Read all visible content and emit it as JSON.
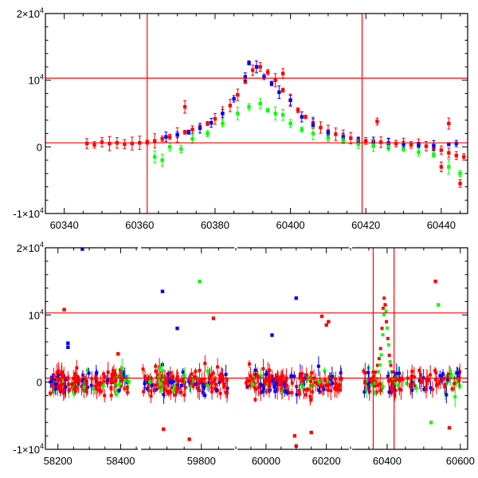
{
  "chart_data": [
    {
      "type": "scatter",
      "title": "",
      "xlabel": "",
      "ylabel": "",
      "xlim": [
        60335,
        60447
      ],
      "ylim": [
        -10000,
        20000
      ],
      "xticks": [
        60340,
        60360,
        60380,
        60400,
        60420,
        60440
      ],
      "xtick_labels": [
        "60340",
        "60360",
        "60380",
        "60400",
        "60420",
        "60440"
      ],
      "yticks": [
        -10000,
        0,
        10000,
        20000
      ],
      "ytick_labels": [
        {
          "base": "-1×10",
          "exp": "4"
        },
        {
          "base": "0",
          "exp": ""
        },
        {
          "base": "10",
          "exp": "4"
        },
        {
          "base": "2×10",
          "exp": "4"
        }
      ],
      "reference_lines": {
        "vertical": [
          60362,
          60419
        ],
        "horizontal": [
          10300,
          600
        ]
      },
      "series": [
        {
          "color": "#ff0000",
          "marker": "square",
          "x": [
            60346,
            60348,
            60350,
            60352,
            60354,
            60356,
            60358,
            60360,
            60362,
            60364,
            60366,
            60368,
            60370,
            60372,
            60374,
            60376,
            60378,
            60380,
            60382,
            60384,
            60386,
            60388,
            60390,
            60392,
            60394,
            60396,
            60398,
            60400,
            60402,
            60404,
            60406,
            60408,
            60410,
            60412,
            60414,
            60416,
            60418,
            60420,
            60422,
            60424,
            60426,
            60428,
            60430,
            60432,
            60434,
            60436,
            60438,
            60440,
            60442,
            60444,
            60446,
            60372,
            60398,
            60423,
            60442,
            60440,
            60445
          ],
          "y": [
            500,
            300,
            700,
            500,
            600,
            400,
            500,
            600,
            700,
            900,
            1200,
            1500,
            1800,
            2200,
            2600,
            3000,
            3500,
            4200,
            5000,
            6200,
            7800,
            9800,
            11500,
            12000,
            11200,
            10000,
            8500,
            7000,
            5500,
            4500,
            3600,
            2900,
            2300,
            1900,
            1600,
            1300,
            1100,
            900,
            800,
            700,
            600,
            500,
            400,
            300,
            200,
            100,
            -200,
            -500,
            -900,
            -1300,
            -1500,
            6000,
            11000,
            3800,
            3500,
            -3000,
            -5500
          ]
        },
        {
          "color": "#0000ff",
          "marker": "square",
          "x": [
            60367,
            60370,
            60373,
            60376,
            60379,
            60382,
            60385,
            60388,
            60389,
            60391,
            60393,
            60395,
            60397,
            60400,
            60403,
            60406,
            60410,
            60414,
            60418,
            60422,
            60426,
            60430,
            60434,
            60438,
            60442,
            60444
          ],
          "y": [
            1500,
            1800,
            2200,
            2800,
            3600,
            5000,
            7200,
            10500,
            12600,
            12000,
            10500,
            9500,
            8200,
            7000,
            4500,
            3200,
            2100,
            1400,
            900,
            700,
            500,
            400,
            300,
            200,
            400,
            500
          ]
        },
        {
          "color": "#00ff00",
          "marker": "square",
          "x": [
            60364,
            60366,
            60368,
            60371,
            60374,
            60378,
            60382,
            60386,
            60389,
            60392,
            60394,
            60396,
            60398,
            60400,
            60403,
            60406,
            60410,
            60414,
            60418,
            60422,
            60426,
            60430,
            60434,
            60438,
            60442,
            60445
          ],
          "y": [
            -1500,
            -2000,
            0,
            -300,
            1200,
            2000,
            3500,
            5000,
            6000,
            6500,
            5500,
            5000,
            4800,
            3500,
            2600,
            2000,
            1300,
            900,
            400,
            200,
            0,
            -400,
            -800,
            -1200,
            -3000,
            -4000
          ]
        }
      ]
    },
    {
      "type": "scatter",
      "title": "",
      "xlabel": "",
      "ylabel": "",
      "x_segments": [
        {
          "xlim": [
            58160,
            58460
          ],
          "xticks": [
            58200,
            58400
          ]
        },
        {
          "xlim": [
            59620,
            59900
          ],
          "xticks": [
            59800
          ]
        },
        {
          "xlim": [
            59900,
            60280
          ],
          "xticks": [
            60000,
            60200
          ]
        },
        {
          "xlim": [
            60300,
            60620
          ],
          "xticks": [
            60400,
            60600
          ]
        }
      ],
      "xtick_labels": [
        "58200",
        "58400",
        "59800",
        "60000",
        "60200",
        "60400",
        "60600"
      ],
      "ylim": [
        -10000,
        20000
      ],
      "yticks": [
        -10000,
        0,
        10000,
        20000
      ],
      "ytick_labels": [
        {
          "base": "-1×10",
          "exp": "4"
        },
        {
          "base": "0",
          "exp": ""
        },
        {
          "base": "10",
          "exp": "4"
        },
        {
          "base": "2×10",
          "exp": "4"
        }
      ],
      "reference_lines": {
        "vertical": [
          60362,
          60419
        ],
        "horizontal": [
          10300,
          600
        ]
      },
      "observing_seasons": [
        [
          58175,
          58430
        ],
        [
          59630,
          59880
        ],
        [
          59930,
          60250
        ],
        [
          60335,
          60600
        ]
      ],
      "outliers": [
        {
          "color": "#0000ff",
          "x": 58278,
          "y": 19800
        },
        {
          "color": "#ff0000",
          "x": 58220,
          "y": 10800
        },
        {
          "color": "#0000ff",
          "x": 58232,
          "y": 5800
        },
        {
          "color": "#0000ff",
          "x": 58232,
          "y": 5200
        },
        {
          "color": "#ff0000",
          "x": 58392,
          "y": 4200
        },
        {
          "color": "#0000ff",
          "x": 59687,
          "y": 13500
        },
        {
          "color": "#00ff00",
          "x": 59795,
          "y": 15000
        },
        {
          "color": "#0000ff",
          "x": 59730,
          "y": 8000
        },
        {
          "color": "#ff0000",
          "x": 59835,
          "y": 9500
        },
        {
          "color": "#0000ff",
          "x": 60100,
          "y": 12500
        },
        {
          "color": "#ff0000",
          "x": 60185,
          "y": 9800
        },
        {
          "color": "#ff0000",
          "x": 60200,
          "y": 8500
        },
        {
          "color": "#ff0000",
          "x": 60207,
          "y": 9000
        },
        {
          "color": "#0000ff",
          "x": 60020,
          "y": 7000
        },
        {
          "color": "#ff0000",
          "x": 60532,
          "y": 15000
        },
        {
          "color": "#00ff00",
          "x": 60540,
          "y": 11500
        },
        {
          "color": "#ff0000",
          "x": 60095,
          "y": -8000
        },
        {
          "color": "#ff0000",
          "x": 60100,
          "y": -9500
        },
        {
          "color": "#ff0000",
          "x": 59690,
          "y": -7000
        },
        {
          "color": "#ff0000",
          "x": 59765,
          "y": -8500
        },
        {
          "color": "#ff0000",
          "x": 60150,
          "y": -7500
        },
        {
          "color": "#00ff00",
          "x": 60520,
          "y": -6000
        },
        {
          "color": "#ff0000",
          "x": 60570,
          "y": -6800
        }
      ],
      "flare": {
        "color": "#ff0000",
        "x": [
          60355,
          60362,
          60368,
          60374,
          60378,
          60382,
          60386,
          60389,
          60392,
          60395,
          60398,
          60402,
          60406,
          60410,
          60415,
          60420,
          60428
        ],
        "y": [
          500,
          800,
          1500,
          2500,
          3500,
          5000,
          8000,
          11000,
          12500,
          11500,
          9000,
          6500,
          4000,
          2500,
          1500,
          800,
          400
        ]
      }
    }
  ]
}
